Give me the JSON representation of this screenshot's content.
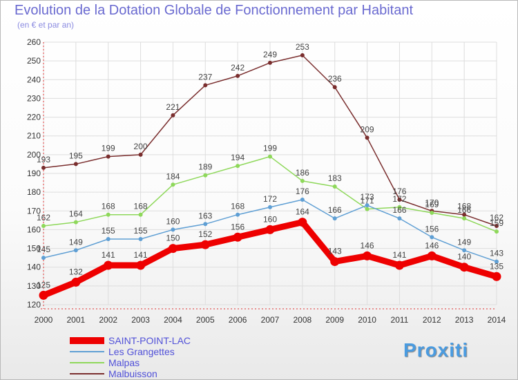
{
  "title": "Evolution de la Dotation Globale de Fonctionnement par Habitant",
  "subtitle": "(en € et par an)",
  "brand": "Proxiti",
  "colors": {
    "title": "#6a6ad0",
    "legend_text": "#5050d8",
    "grid": "#dddddd"
  },
  "chart_data": {
    "type": "line",
    "x": [
      "2000",
      "2001",
      "2002",
      "2003",
      "2004",
      "2005",
      "2006",
      "2007",
      "2008",
      "2009",
      "2010",
      "2011",
      "2012",
      "2013",
      "2014"
    ],
    "ylim": [
      120,
      260
    ],
    "yticks": [
      120,
      130,
      140,
      150,
      160,
      170,
      180,
      190,
      200,
      210,
      220,
      230,
      240,
      250,
      260
    ],
    "grid": true,
    "legend_position": "bottom-left",
    "series": [
      {
        "name": "Malbuisson",
        "color": "#7a2e2e",
        "values": [
          193,
          195,
          199,
          200,
          221,
          237,
          242,
          249,
          253,
          236,
          209,
          176,
          170,
          168,
          162
        ]
      },
      {
        "name": "Malpas",
        "color": "#8ed85a",
        "values": [
          162,
          164,
          168,
          168,
          184,
          189,
          194,
          199,
          186,
          183,
          171,
          172,
          169,
          166,
          159
        ]
      },
      {
        "name": "Les Grangettes",
        "color": "#5f9fd4",
        "values": [
          145,
          149,
          155,
          155,
          160,
          163,
          168,
          172,
          176,
          166,
          173,
          166,
          156,
          149,
          143
        ]
      },
      {
        "name": "SAINT-POINT-LAC",
        "color": "#ee0000",
        "values": [
          125,
          132,
          141,
          141,
          150,
          152,
          156,
          160,
          164,
          143,
          146,
          141,
          146,
          140,
          135
        ]
      }
    ]
  }
}
